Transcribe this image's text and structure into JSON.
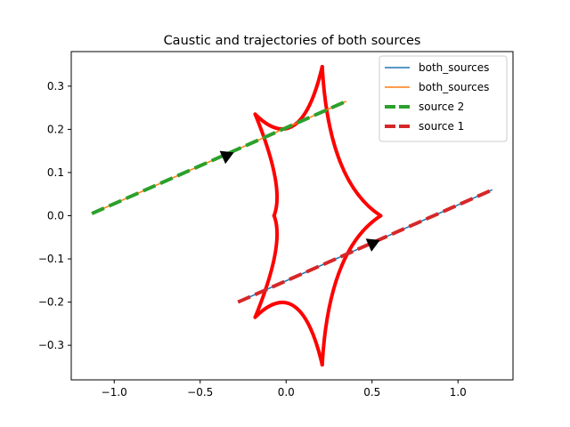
{
  "chart_data": {
    "type": "line",
    "title": "Caustic and trajectories of both sources",
    "xlabel": "",
    "ylabel": "",
    "xlim": [
      -1.25,
      1.32
    ],
    "ylim": [
      -0.38,
      0.38
    ],
    "x_ticks": [
      -1.0,
      -0.5,
      0.0,
      0.5,
      1.0
    ],
    "x_tick_labels": [
      "−1.0",
      "−0.5",
      "0.0",
      "0.5",
      "1.0"
    ],
    "y_ticks": [
      -0.3,
      -0.2,
      -0.1,
      0.0,
      0.1,
      0.2,
      0.3
    ],
    "y_tick_labels": [
      "−0.3",
      "−0.2",
      "−0.1",
      "0.0",
      "0.1",
      "0.2",
      "0.3"
    ],
    "grid": false,
    "legend_position": "top-right",
    "caustic": {
      "color": "#ff0000",
      "cusps": [
        [
          0.21,
          0.345
        ],
        [
          -0.18,
          0.235
        ],
        [
          0.55,
          0.0
        ],
        [
          -0.18,
          -0.235
        ],
        [
          0.21,
          -0.345
        ],
        [
          -0.07,
          0.0
        ]
      ]
    },
    "series": [
      {
        "name": "both_sources",
        "color": "#1f77b4",
        "style": "solid",
        "x": [
          -0.28,
          1.2
        ],
        "y": [
          -0.2,
          0.06
        ]
      },
      {
        "name": "both_sources",
        "color": "#ff7f0e",
        "style": "solid",
        "x": [
          -1.13,
          0.35
        ],
        "y": [
          0.005,
          0.265
        ]
      },
      {
        "name": "source 2",
        "color": "#2ca02c",
        "style": "dashed",
        "x": [
          -1.13,
          0.35
        ],
        "y": [
          0.005,
          0.265
        ]
      },
      {
        "name": "source 1",
        "color": "#d62728",
        "style": "dashed",
        "x": [
          -0.28,
          1.2
        ],
        "y": [
          -0.2,
          0.06
        ]
      }
    ],
    "arrows": [
      {
        "x": -0.37,
        "y": 0.135,
        "dx": 0.06,
        "dy": 0.0105
      },
      {
        "x": 0.48,
        "y": -0.068,
        "dx": 0.06,
        "dy": 0.0105
      }
    ]
  }
}
